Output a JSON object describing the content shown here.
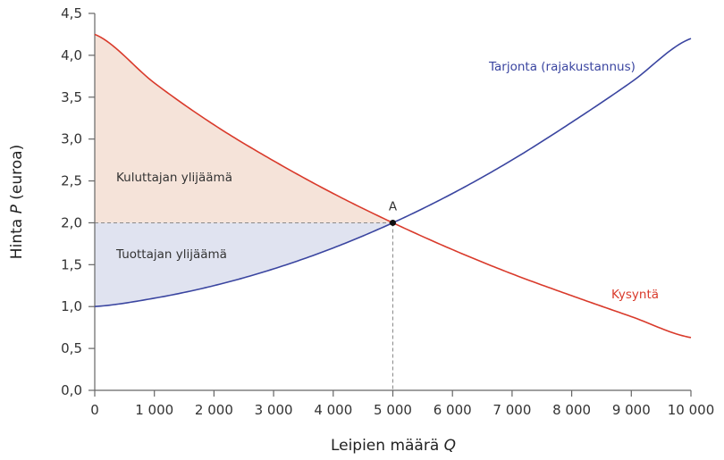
{
  "chart_data": {
    "type": "line",
    "title": "",
    "xlabel": "Leipien määrä Q",
    "ylabel": "Hinta P (euroa)",
    "xlim": [
      0,
      10000
    ],
    "ylim": [
      0,
      4.5
    ],
    "grid": false,
    "x_ticks": [
      0,
      1000,
      2000,
      3000,
      4000,
      5000,
      6000,
      7000,
      8000,
      9000,
      10000
    ],
    "x_tick_labels": [
      "0",
      "1 000",
      "2 000",
      "3 000",
      "4 000",
      "5 000",
      "6 000",
      "7 000",
      "8 000",
      "9 000",
      "10 000"
    ],
    "y_ticks": [
      0,
      0.5,
      1.0,
      1.5,
      2.0,
      2.5,
      3.0,
      3.5,
      4.0,
      4.5
    ],
    "y_tick_labels": [
      "0,0",
      "0,5",
      "1,0",
      "1,5",
      "2,0",
      "2,5",
      "3,0",
      "3,5",
      "4,0",
      "4,5"
    ],
    "series": [
      {
        "name": "Tarjonta (rajakustannus)",
        "color": "#3a45a0",
        "x": [
          0,
          1000,
          2000,
          3000,
          4000,
          5000,
          6000,
          7000,
          8000,
          9000,
          10000
        ],
        "y": [
          1.0,
          1.1,
          1.25,
          1.45,
          1.7,
          2.0,
          2.35,
          2.75,
          3.2,
          3.68,
          4.2
        ]
      },
      {
        "name": "Kysyntä",
        "color": "#d93a2b",
        "x": [
          0,
          1000,
          2000,
          3000,
          4000,
          5000,
          6000,
          7000,
          8000,
          9000,
          10000
        ],
        "y": [
          4.25,
          3.67,
          3.17,
          2.74,
          2.35,
          2.0,
          1.68,
          1.39,
          1.13,
          0.88,
          0.63
        ]
      }
    ],
    "equilibrium": {
      "label": "A",
      "q": 5000,
      "p": 2.0
    },
    "regions": [
      {
        "name": "Kuluttajan ylijäämä",
        "fill": "#f5e3d9"
      },
      {
        "name": "Tuottajan ylijäämä",
        "fill": "#e0e3f0"
      }
    ],
    "annotations": {
      "supply_label": "Tarjonta (rajakustannus)",
      "demand_label": "Kysyntä",
      "consumer_surplus_label": "Kuluttajan ylijäämä",
      "producer_surplus_label": "Tuottajan ylijäämä",
      "point_label": "A"
    }
  },
  "axes": {
    "x_title_prefix": "Leipien määrä ",
    "x_title_var": "Q",
    "y_title_prefix": "Hinta ",
    "y_title_var": "P",
    "y_title_suffix": " (euroa)"
  }
}
